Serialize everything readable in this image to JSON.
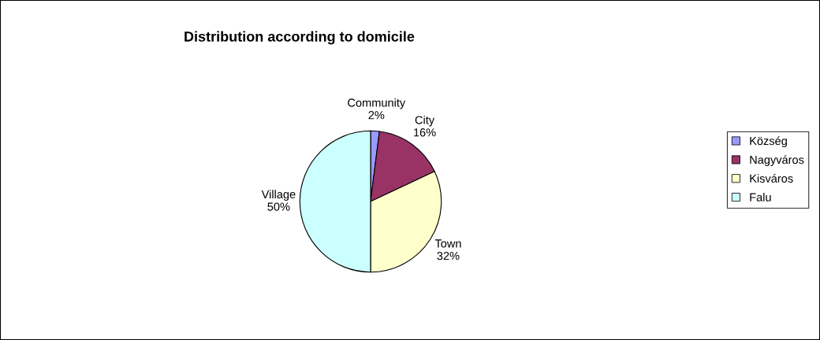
{
  "chart_data": {
    "type": "pie",
    "title": "Distribution according to domicile",
    "categories": [
      "Község",
      "Nagyváros",
      "Kisváros",
      "Falu"
    ],
    "values": [
      2,
      16,
      32,
      50
    ],
    "colors": [
      "#9999ff",
      "#993366",
      "#ffffcc",
      "#ccffff"
    ],
    "value_labels": [
      "Community\n2%",
      "City\n16%",
      "Town\n32%",
      "Village\n50%"
    ],
    "legend": "right"
  }
}
